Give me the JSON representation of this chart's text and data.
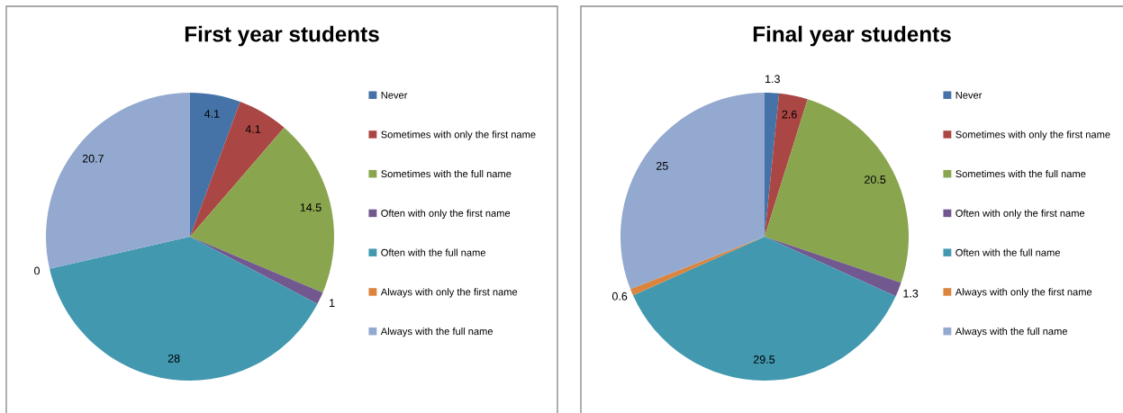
{
  "chart_data": [
    {
      "type": "pie",
      "title": "First year students",
      "categories": [
        "Never",
        "Sometimes with only the first name",
        "Sometimes with the full name",
        "Often with only the first name",
        "Often with the full name",
        "Always with only the first name",
        "Always with the full name"
      ],
      "values": [
        4.1,
        4.1,
        14.5,
        1,
        28,
        0,
        20.7
      ],
      "value_labels": [
        "4.1",
        "4.1",
        "14.5",
        "1",
        "28",
        "0",
        "20.7"
      ],
      "colors": [
        "#4572a7",
        "#aa4643",
        "#89a54e",
        "#71588f",
        "#4198af",
        "#db843d",
        "#93a9cf"
      ],
      "legend": "right"
    },
    {
      "type": "pie",
      "title": "Final year students",
      "categories": [
        "Never",
        "Sometimes with only the first name",
        "Sometimes with the full name",
        "Often with only the first name",
        "Often with the full name",
        "Always with only the first name",
        "Always with the full name"
      ],
      "values": [
        1.3,
        2.6,
        20.5,
        1.3,
        29.5,
        0.6,
        25
      ],
      "value_labels": [
        "1.3",
        "2.6",
        "20.5",
        "1.3",
        "29.5",
        "0.6",
        "25"
      ],
      "colors": [
        "#4572a7",
        "#aa4643",
        "#89a54e",
        "#71588f",
        "#4198af",
        "#db843d",
        "#93a9cf"
      ],
      "legend": "right"
    }
  ]
}
